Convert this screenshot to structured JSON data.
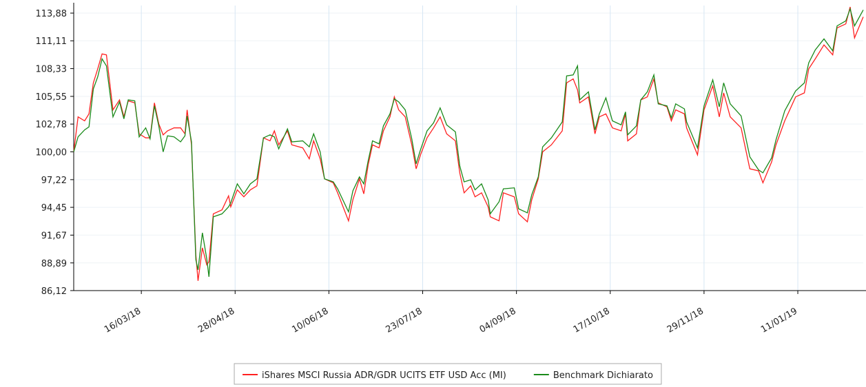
{
  "chart_data": {
    "type": "line",
    "x": [
      "13/02/18",
      "15/02/18",
      "18/02/18",
      "20/02/18",
      "22/02/18",
      "24/02/18",
      "26/02/18",
      "28/02/18",
      "03/03/18",
      "06/03/18",
      "08/03/18",
      "10/03/18",
      "13/03/18",
      "15/03/18",
      "18/03/18",
      "20/03/18",
      "22/03/18",
      "24/03/18",
      "26/03/18",
      "28/03/18",
      "31/03/18",
      "03/04/18",
      "05/04/18",
      "06/04/18",
      "08/04/18",
      "10/04/18",
      "11/04/18",
      "13/04/18",
      "15/04/18",
      "16/04/18",
      "18/04/18",
      "22/04/18",
      "25/04/18",
      "26/04/18",
      "29/04/18",
      "02/05/18",
      "05/05/18",
      "08/05/18",
      "11/05/18",
      "14/05/18",
      "16/05/18",
      "18/05/18",
      "22/05/18",
      "24/05/18",
      "29/05/18",
      "01/06/18",
      "03/06/18",
      "06/06/18",
      "08/06/18",
      "12/06/18",
      "14/06/18",
      "19/06/18",
      "21/06/18",
      "24/06/18",
      "26/06/18",
      "28/06/18",
      "30/06/18",
      "03/07/18",
      "05/07/18",
      "08/07/18",
      "10/07/18",
      "12/07/18",
      "15/07/18",
      "18/07/18",
      "20/07/18",
      "22/07/18",
      "25/07/18",
      "28/07/18",
      "31/07/18",
      "03/08/18",
      "07/08/18",
      "09/08/18",
      "11/08/18",
      "14/08/18",
      "16/08/18",
      "19/08/18",
      "22/08/18",
      "23/08/18",
      "27/08/18",
      "29/08/18",
      "03/09/18",
      "05/09/18",
      "09/09/18",
      "11/09/18",
      "14/09/18",
      "16/09/18",
      "20/09/18",
      "25/09/18",
      "27/09/18",
      "30/09/18",
      "02/10/18",
      "03/10/18",
      "07/10/18",
      "10/10/18",
      "12/10/18",
      "15/10/18",
      "18/10/18",
      "22/10/18",
      "24/10/18",
      "25/10/18",
      "29/10/18",
      "31/10/18",
      "03/11/18",
      "06/11/18",
      "08/11/18",
      "12/11/18",
      "14/11/18",
      "16/11/18",
      "20/11/18",
      "21/11/18",
      "26/11/18",
      "29/11/18",
      "03/12/18",
      "06/12/18",
      "08/12/18",
      "11/12/18",
      "16/12/18",
      "20/12/18",
      "24/12/18",
      "26/12/18",
      "30/12/18",
      "01/01/19",
      "05/01/19",
      "10/01/19",
      "14/01/19",
      "16/01/19",
      "19/01/19",
      "23/01/19",
      "27/01/19",
      "29/01/19",
      "02/02/19",
      "04/02/19",
      "06/02/19",
      "10/02/19"
    ],
    "series": [
      {
        "name": "iShares MSCI Russia ADR/GDR UCITS ETF USD Acc (MI)",
        "color": "#ff2020",
        "values": [
          100.0,
          103.5,
          103.1,
          103.8,
          106.9,
          108.3,
          109.8,
          109.7,
          104.2,
          105.2,
          103.5,
          105.1,
          104.9,
          101.8,
          101.4,
          101.4,
          104.9,
          102.8,
          101.7,
          102.1,
          102.4,
          102.4,
          101.8,
          104.2,
          100.7,
          89.7,
          87.1,
          90.4,
          88.7,
          89.0,
          93.8,
          94.2,
          95.6,
          94.5,
          96.2,
          95.5,
          96.2,
          96.6,
          101.4,
          101.1,
          102.1,
          100.7,
          102.1,
          100.7,
          100.4,
          99.3,
          101.1,
          99.3,
          97.3,
          96.9,
          95.9,
          93.1,
          95.2,
          97.3,
          95.8,
          98.7,
          100.7,
          100.4,
          102.1,
          103.5,
          105.5,
          104.2,
          103.5,
          100.7,
          98.3,
          99.7,
          101.4,
          102.4,
          103.5,
          101.8,
          101.1,
          97.9,
          95.9,
          96.6,
          95.5,
          95.9,
          94.5,
          93.5,
          93.1,
          95.9,
          95.5,
          93.8,
          93.0,
          95.2,
          97.3,
          100.0,
          100.7,
          102.1,
          106.9,
          107.3,
          106.2,
          104.9,
          105.5,
          101.8,
          103.5,
          103.8,
          102.4,
          102.1,
          103.8,
          101.1,
          101.8,
          105.2,
          105.5,
          107.3,
          104.9,
          104.5,
          103.1,
          104.2,
          103.8,
          102.4,
          99.7,
          104.2,
          106.6,
          103.5,
          105.9,
          103.5,
          102.4,
          98.3,
          98.1,
          96.9,
          99.0,
          100.7,
          103.1,
          105.5,
          105.9,
          108.3,
          109.3,
          110.7,
          109.7,
          112.4,
          112.8,
          114.5,
          111.4,
          113.5
        ]
      },
      {
        "name": "Benchmark Dichiarato",
        "color": "#1a8a1a",
        "values": [
          100.0,
          101.5,
          102.2,
          102.5,
          106.3,
          107.5,
          109.3,
          108.6,
          103.5,
          105.0,
          103.3,
          105.2,
          105.1,
          101.5,
          102.4,
          101.3,
          104.6,
          102.6,
          100.0,
          101.6,
          101.5,
          101.0,
          101.6,
          103.6,
          101.0,
          89.2,
          88.2,
          91.9,
          89.3,
          87.5,
          93.5,
          93.8,
          94.5,
          94.9,
          96.8,
          95.8,
          96.8,
          97.3,
          101.4,
          101.7,
          101.5,
          100.3,
          102.3,
          101.0,
          101.1,
          100.5,
          101.8,
          100.0,
          97.3,
          97.0,
          96.3,
          94.0,
          96.1,
          97.5,
          96.8,
          99.1,
          101.1,
          100.8,
          102.6,
          103.8,
          105.3,
          105.0,
          104.2,
          101.3,
          98.8,
          100.2,
          102.1,
          102.9,
          104.4,
          102.7,
          102.0,
          98.6,
          97.0,
          97.2,
          96.2,
          96.8,
          95.2,
          93.8,
          95.0,
          96.3,
          96.4,
          94.3,
          93.9,
          95.7,
          97.5,
          100.5,
          101.4,
          103.0,
          107.6,
          107.7,
          108.6,
          105.2,
          106.0,
          102.2,
          103.8,
          105.4,
          103.1,
          102.7,
          104.0,
          101.7,
          102.6,
          105.2,
          106.0,
          107.7,
          104.8,
          104.6,
          103.4,
          104.8,
          104.3,
          103.0,
          100.4,
          104.6,
          107.2,
          104.5,
          106.9,
          104.8,
          103.6,
          99.5,
          98.2,
          97.9,
          99.4,
          101.2,
          104.1,
          106.1,
          106.9,
          108.9,
          110.2,
          111.3,
          110.1,
          112.6,
          113.1,
          114.3,
          112.6,
          114.2
        ]
      }
    ],
    "xlim": [
      "13/02/18",
      "10/02/19"
    ],
    "xticks": [
      "16/03/18",
      "28/04/18",
      "10/06/18",
      "23/07/18",
      "04/09/18",
      "17/10/18",
      "29/11/18",
      "11/01/19"
    ],
    "ylim": [
      86.12,
      114.64
    ],
    "yticks": [
      {
        "value": 86.12,
        "label": "86,12"
      },
      {
        "value": 88.89,
        "label": "88,89"
      },
      {
        "value": 91.67,
        "label": "91,67"
      },
      {
        "value": 94.45,
        "label": "94,45"
      },
      {
        "value": 97.22,
        "label": "97,22"
      },
      {
        "value": 100.0,
        "label": "100,00"
      },
      {
        "value": 102.78,
        "label": "102,78"
      },
      {
        "value": 105.55,
        "label": "105,55"
      },
      {
        "value": 108.33,
        "label": "108,33"
      },
      {
        "value": 111.11,
        "label": "111,11"
      },
      {
        "value": 113.88,
        "label": "113,88"
      }
    ],
    "grid": true,
    "legend": "bottom"
  }
}
